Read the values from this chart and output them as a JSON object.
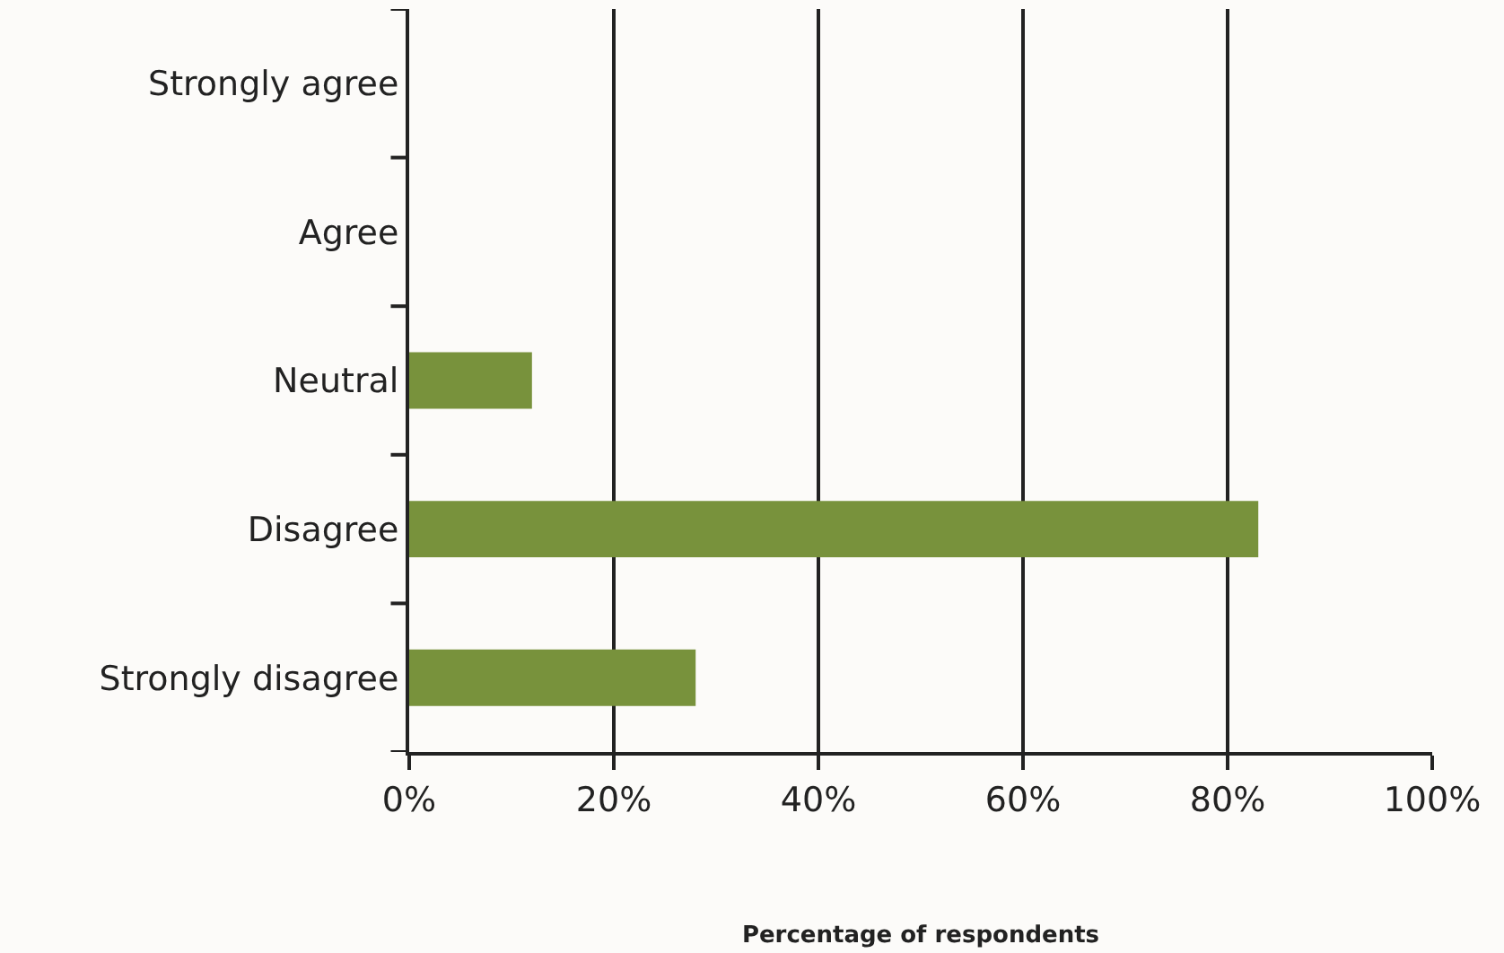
{
  "chart_data": {
    "type": "bar",
    "orientation": "horizontal",
    "xlabel": "Percentage of respondents",
    "categories": [
      "Strongly agree",
      "Agree",
      "Neutral",
      "Disagree",
      "Strongly disagree"
    ],
    "values": [
      null,
      null,
      12,
      83,
      28
    ],
    "color": "#78923c",
    "xlim": [
      0,
      100
    ],
    "xticks": [
      {
        "value": 0,
        "label": "0%"
      },
      {
        "value": 20,
        "label": "20%"
      },
      {
        "value": 40,
        "label": "40%"
      },
      {
        "value": 60,
        "label": "60%"
      },
      {
        "value": 80,
        "label": "80%"
      },
      {
        "value": 100,
        "label": "100%"
      }
    ],
    "grid": "x"
  }
}
